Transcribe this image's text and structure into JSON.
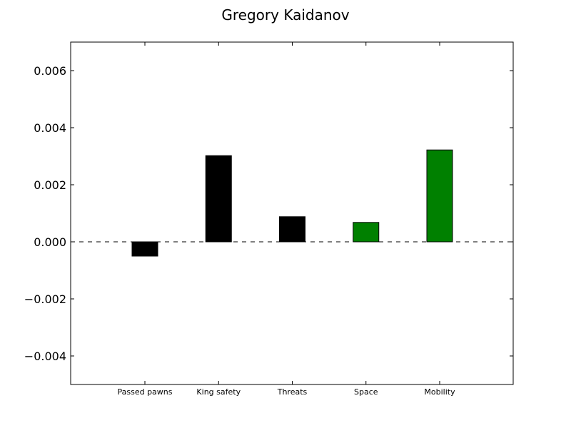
{
  "chart_data": {
    "type": "bar",
    "title": "Gregory Kaidanov",
    "xlabel": "",
    "ylabel": "",
    "categories": [
      "Passed pawns",
      "King safety",
      "Threats",
      "Space",
      "Mobility"
    ],
    "values": [
      -0.0005,
      0.00302,
      0.00088,
      0.00068,
      0.00322
    ],
    "bar_colors": [
      "#000000",
      "#000000",
      "#000000",
      "#008000",
      "#008000"
    ],
    "ylim": [
      -0.005,
      0.007
    ],
    "yticks": [
      -0.004,
      -0.002,
      0.0,
      0.002,
      0.004,
      0.006
    ],
    "ytick_labels": [
      "−0.004",
      "−0.002",
      "0.000",
      "0.002",
      "0.004",
      "0.006"
    ],
    "zero_line": "dashed",
    "grid": false,
    "legend": "none"
  }
}
